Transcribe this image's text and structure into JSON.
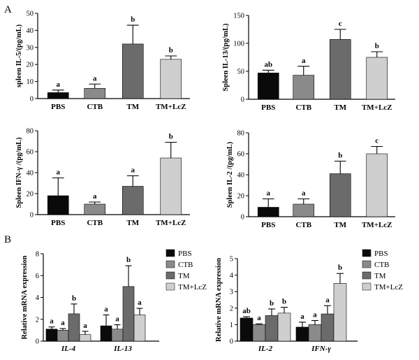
{
  "panel_letters": [
    "A",
    "B"
  ],
  "colors": {
    "PBS": "#0a0a0a",
    "CTB": "#8a8a8a",
    "TM": "#6b6b6b",
    "TM+LcZ": "#cfcfcf"
  },
  "chart_data": [
    {
      "type": "bar",
      "panel": "A",
      "ylabel": "spleen IL-5/(pg/mL)",
      "ylim": [
        0,
        50
      ],
      "yticks": [
        0,
        10,
        20,
        30,
        40,
        50
      ],
      "categories": [
        "PBS",
        "CTB",
        "TM",
        "TM+LcZ"
      ],
      "values": [
        3.5,
        6,
        32,
        23
      ],
      "errors": [
        1.5,
        2.5,
        11,
        2
      ],
      "significance": [
        "a",
        "a",
        "b",
        "b"
      ]
    },
    {
      "type": "bar",
      "panel": "A",
      "ylabel": "Spleen IL-13/(pg/mL)",
      "ylim": [
        0,
        150
      ],
      "yticks": [
        0,
        50,
        100,
        150
      ],
      "categories": [
        "PBS",
        "CTB",
        "TM",
        "TM+LcZ"
      ],
      "values": [
        47,
        43,
        107,
        75
      ],
      "errors": [
        5,
        16,
        18,
        10
      ],
      "significance": [
        "ab",
        "a",
        "c",
        "b"
      ]
    },
    {
      "type": "bar",
      "panel": "A",
      "ylabel": "Spleen IFN-γ /(pg/mL)",
      "ylim": [
        0,
        80
      ],
      "yticks": [
        0,
        20,
        40,
        60,
        80
      ],
      "categories": [
        "PBS",
        "CTB",
        "TM",
        "TM+LcZ"
      ],
      "values": [
        18,
        10,
        27,
        54
      ],
      "errors": [
        17,
        2,
        10,
        15
      ],
      "significance": [
        "a",
        "a",
        "a",
        "b"
      ]
    },
    {
      "type": "bar",
      "panel": "A",
      "ylabel": "Spleen IL-2 /(pg/mL)",
      "ylim": [
        0,
        80
      ],
      "yticks": [
        0,
        20,
        40,
        60,
        80
      ],
      "categories": [
        "PBS",
        "CTB",
        "TM",
        "TM+LcZ"
      ],
      "values": [
        9,
        12,
        41,
        60
      ],
      "errors": [
        8,
        5,
        12,
        7
      ],
      "significance": [
        "a",
        "a",
        "b",
        "c"
      ]
    },
    {
      "type": "bar",
      "panel": "B",
      "ylabel": "Relative mRNA expression",
      "ylim": [
        0,
        8
      ],
      "yticks": [
        0,
        2,
        4,
        6,
        8
      ],
      "groups": [
        "IL-4",
        "IL-13"
      ],
      "series": [
        {
          "name": "PBS",
          "values": [
            1.1,
            1.4
          ],
          "errors": [
            0.2,
            1.0
          ],
          "significance": [
            "a",
            "a"
          ]
        },
        {
          "name": "CTB",
          "values": [
            1.0,
            1.1
          ],
          "errors": [
            0.15,
            0.4
          ],
          "significance": [
            "a",
            "a"
          ]
        },
        {
          "name": "TM",
          "values": [
            2.5,
            5.0
          ],
          "errors": [
            0.9,
            1.9
          ],
          "significance": [
            "b",
            "b"
          ]
        },
        {
          "name": "TM+LcZ",
          "values": [
            0.6,
            2.4
          ],
          "errors": [
            0.3,
            0.6
          ],
          "significance": [
            "a",
            "a"
          ]
        }
      ],
      "legend": [
        "PBS",
        "CTB",
        "TM",
        "TM+LcZ"
      ],
      "legend_position": "top-right"
    },
    {
      "type": "bar",
      "panel": "B",
      "ylabel": "Relative mRNA expression",
      "ylim": [
        0,
        5
      ],
      "yticks": [
        0,
        1,
        2,
        3,
        4,
        5
      ],
      "groups": [
        "IL-2",
        "IFN-γ"
      ],
      "series": [
        {
          "name": "PBS",
          "values": [
            1.4,
            0.85
          ],
          "errors": [
            0.08,
            0.3
          ],
          "significance": [
            "ab",
            "a"
          ]
        },
        {
          "name": "CTB",
          "values": [
            1.0,
            1.0
          ],
          "errors": [
            0.05,
            0.25
          ],
          "significance": [
            "a",
            "a"
          ]
        },
        {
          "name": "TM",
          "values": [
            1.55,
            1.65
          ],
          "errors": [
            0.4,
            0.5
          ],
          "significance": [
            "b",
            "a"
          ]
        },
        {
          "name": "TM+LcZ",
          "values": [
            1.7,
            3.5
          ],
          "errors": [
            0.35,
            0.6
          ],
          "significance": [
            "b",
            "b"
          ]
        }
      ],
      "legend": [
        "PBS",
        "CTB",
        "TM",
        "TM+LcZ"
      ],
      "legend_position": "top-right"
    }
  ]
}
